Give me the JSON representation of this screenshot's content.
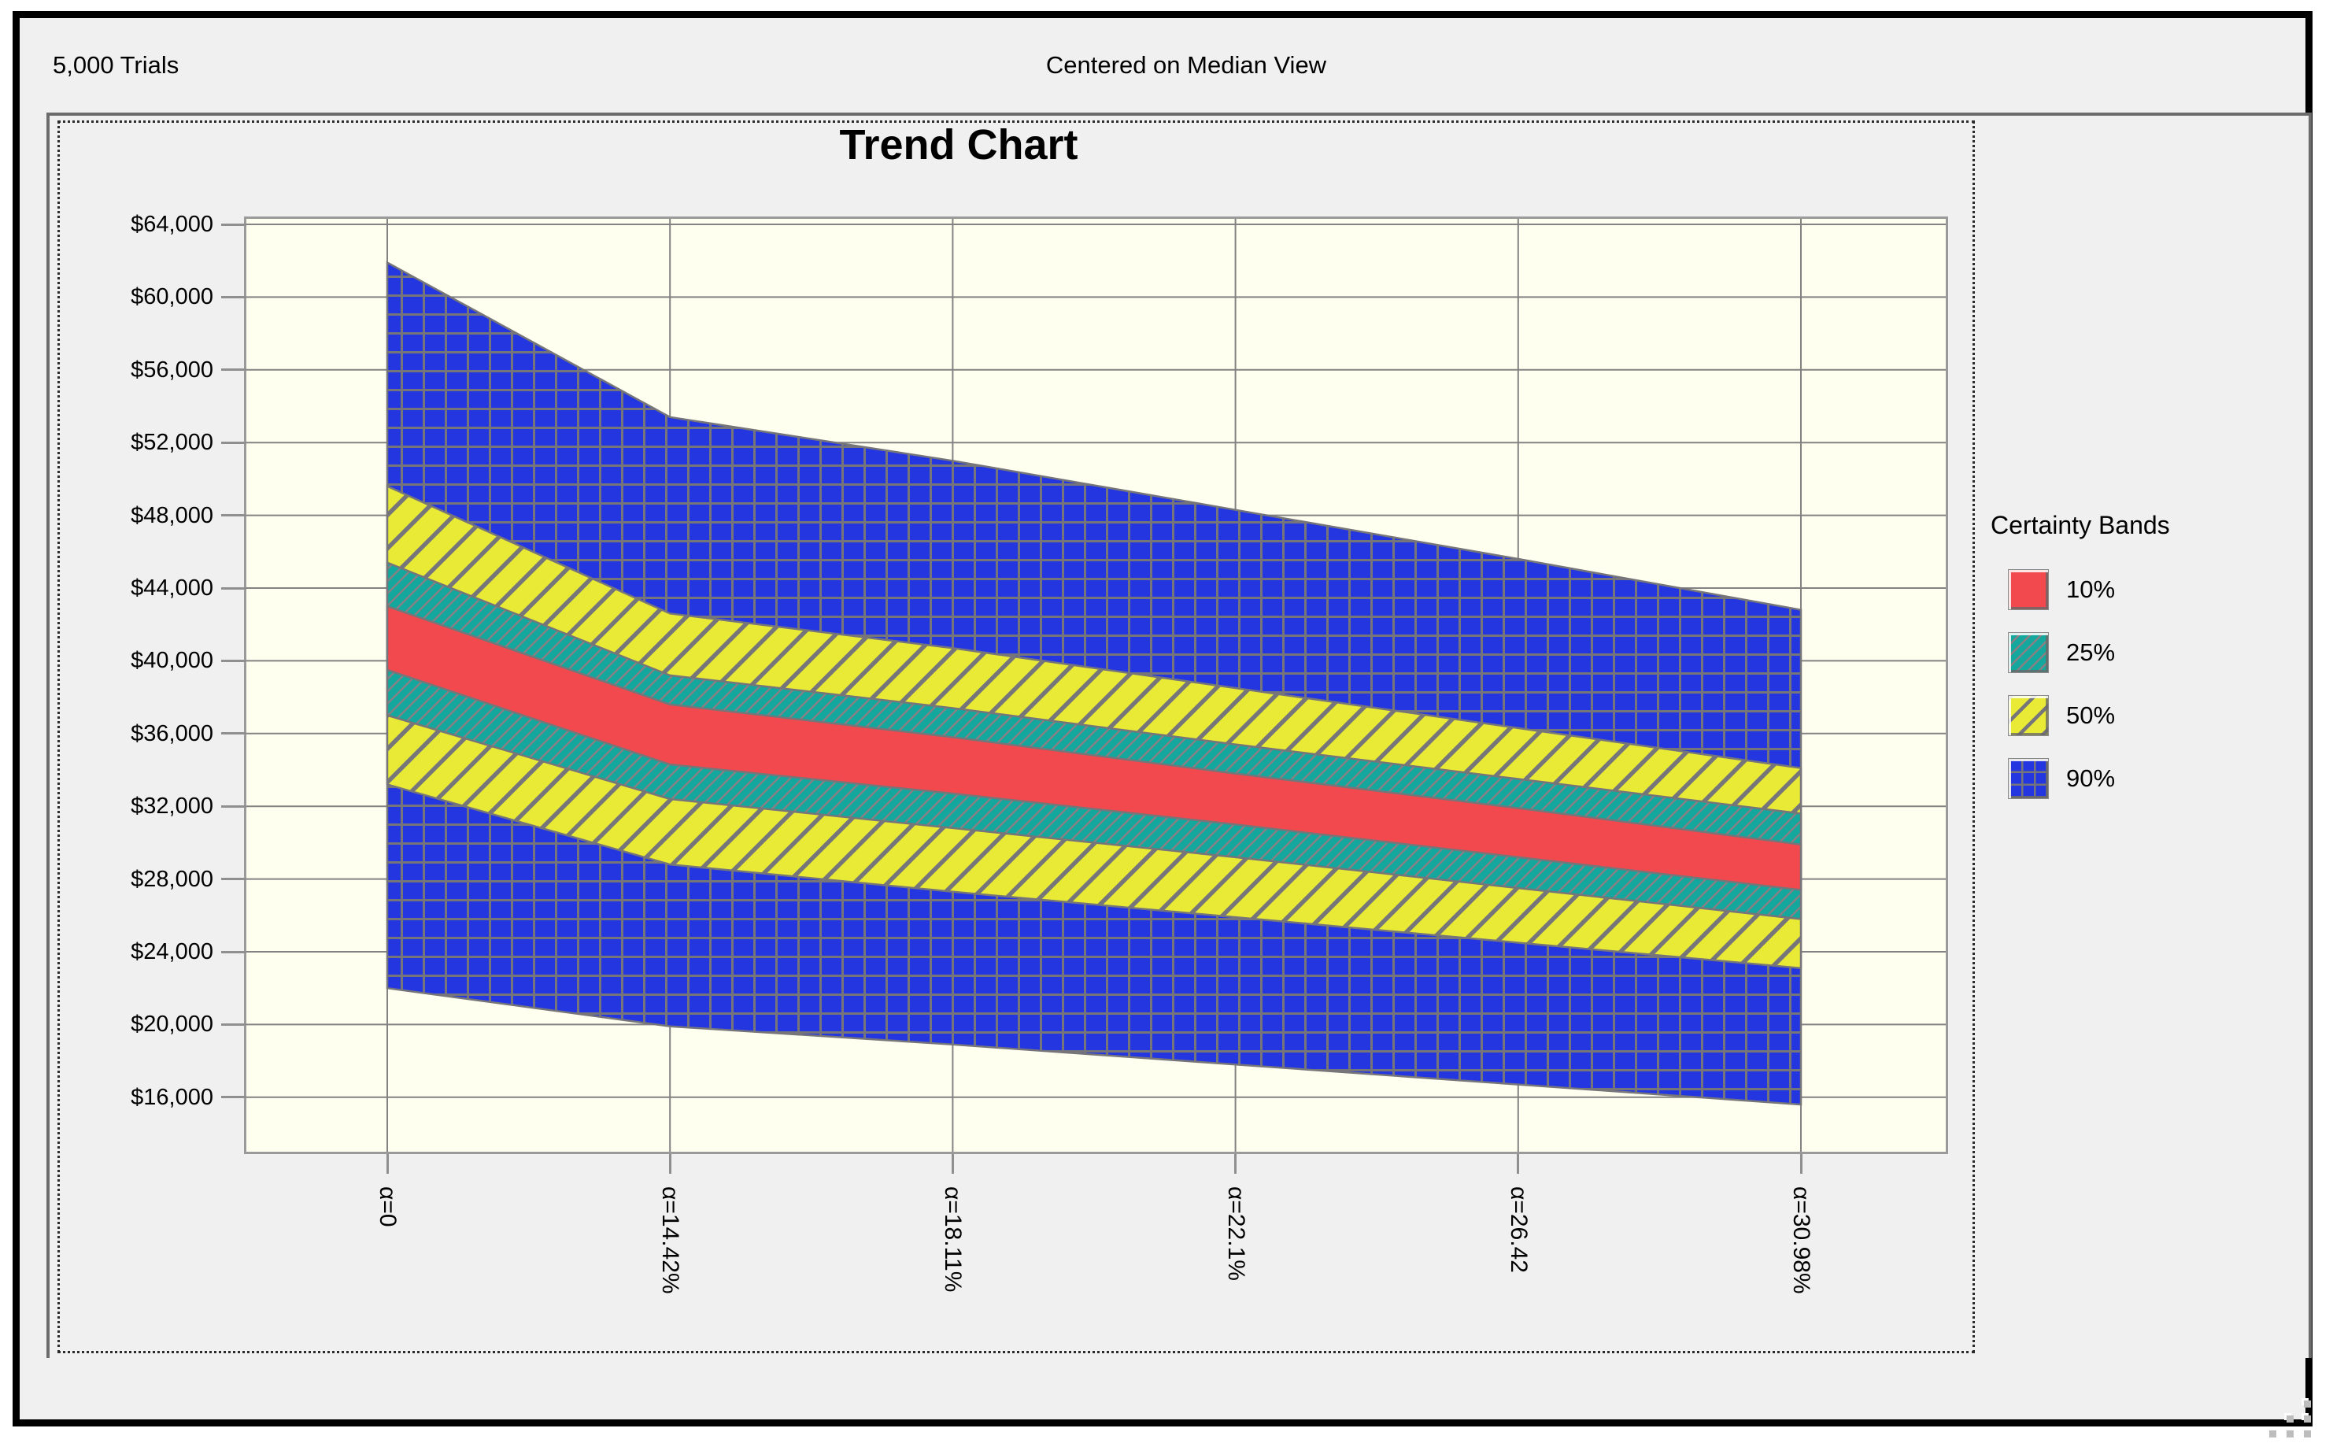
{
  "window": {
    "trials_label": "5,000 Trials",
    "view_label": "Centered on Median View"
  },
  "colors": {
    "red": "#f1494d",
    "teal": "#14a79d",
    "yellow": "#e9ea35",
    "blue": "#2336e0",
    "hatch": "#76767a",
    "teal_hatch": "#8a7f82",
    "grid": "#828282",
    "plot_bg": "#fffff0",
    "plot_border": "#9a9a9a",
    "client_bg": "#f0f0f0",
    "tick": "#8f8f8f"
  },
  "legend": {
    "title": "Certainty Bands",
    "items": [
      {
        "label": "10%",
        "style": "red"
      },
      {
        "label": "25%",
        "style": "teal"
      },
      {
        "label": "50%",
        "style": "yellow"
      },
      {
        "label": "90%",
        "style": "blue"
      }
    ]
  },
  "chart_data": {
    "type": "area",
    "title": "Trend Chart",
    "subtitle": "Centered on Median View",
    "trials": "5,000 Trials",
    "legend_title": "Certainty Bands",
    "legend_position": "right",
    "grid": true,
    "categories": [
      "α=0",
      "α=14.42%",
      "α=18.11%",
      "α=22.1%",
      "α=26.42",
      "α=30.98%"
    ],
    "ylim": [
      16000,
      64000
    ],
    "ytick_step": 4000,
    "yticks": [
      {
        "value": 64000,
        "label": "$64,000"
      },
      {
        "value": 60000,
        "label": "$60,000"
      },
      {
        "value": 56000,
        "label": "$56,000"
      },
      {
        "value": 52000,
        "label": "$52,000"
      },
      {
        "value": 48000,
        "label": "$48,000"
      },
      {
        "value": 44000,
        "label": "$44,000"
      },
      {
        "value": 40000,
        "label": "$40,000"
      },
      {
        "value": 36000,
        "label": "$36,000"
      },
      {
        "value": 32000,
        "label": "$32,000"
      },
      {
        "value": 28000,
        "label": "$28,000"
      },
      {
        "value": 24000,
        "label": "$24,000"
      },
      {
        "value": 20000,
        "label": "$20,000"
      },
      {
        "value": 16000,
        "label": "$16,000"
      }
    ],
    "series": [
      {
        "name": "90%",
        "style": "blue",
        "upper": [
          61900,
          53400,
          51000,
          48300,
          45600,
          42800
        ],
        "lower": [
          22000,
          19900,
          18900,
          17800,
          16700,
          15600
        ]
      },
      {
        "name": "50%",
        "style": "yellow",
        "upper": [
          49600,
          42600,
          40700,
          38500,
          36300,
          34100
        ],
        "lower": [
          33200,
          28800,
          27300,
          25900,
          24500,
          23100
        ]
      },
      {
        "name": "25%",
        "style": "teal",
        "upper": [
          45400,
          39200,
          37400,
          35400,
          33500,
          31600
        ],
        "lower": [
          37000,
          32400,
          30800,
          29200,
          27500,
          25800
        ]
      },
      {
        "name": "10%",
        "style": "red",
        "upper": [
          43000,
          37600,
          35800,
          33800,
          31900,
          29900
        ],
        "lower": [
          39500,
          34300,
          32700,
          31000,
          29200,
          27400
        ]
      }
    ]
  }
}
